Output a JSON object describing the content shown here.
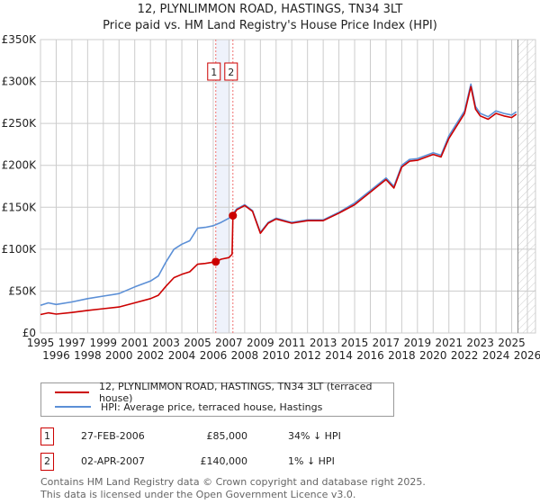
{
  "title_line1": "12, PLYNLIMMON ROAD, HASTINGS, TN34 3LT",
  "title_line2": "Price paid vs. HM Land Registry's House Price Index (HPI)",
  "chart_data": {
    "type": "line",
    "title": "12, PLYNLIMMON ROAD, HASTINGS, TN34 3LT — Price paid vs. HM Land Registry's House Price Index (HPI)",
    "xlim": [
      1995,
      2026
    ],
    "ylim": [
      0,
      350000
    ],
    "x_ticks": [
      "1995",
      "1996",
      "1997",
      "1998",
      "1999",
      "2000",
      "2001",
      "2002",
      "2003",
      "2004",
      "2005",
      "2006",
      "2007",
      "2008",
      "2009",
      "2010",
      "2011",
      "2012",
      "2013",
      "2014",
      "2015",
      "2016",
      "2017",
      "2018",
      "2019",
      "2020",
      "2021",
      "2022",
      "2023",
      "2024",
      "2025",
      "2026"
    ],
    "y_ticks": [
      {
        "v": 0,
        "label": "£0"
      },
      {
        "v": 50000,
        "label": "£50K"
      },
      {
        "v": 100000,
        "label": "£100K"
      },
      {
        "v": 150000,
        "label": "£150K"
      },
      {
        "v": 200000,
        "label": "£200K"
      },
      {
        "v": 250000,
        "label": "£250K"
      },
      {
        "v": 300000,
        "label": "£300K"
      },
      {
        "v": 350000,
        "label": "£350K"
      }
    ],
    "grid": true,
    "series": [
      {
        "name": "12, PLYNLIMMON ROAD, HASTINGS, TN34 3LT (terraced house)",
        "color": "#cc0000",
        "x": [
          1995,
          1995.5,
          1996,
          1997,
          1998,
          1999,
          2000,
          2001,
          2002,
          2002.5,
          2003,
          2003.5,
          2004,
          2004.5,
          2005,
          2005.5,
          2006.16,
          2006.5,
          2007,
          2007.2,
          2007.25,
          2007.5,
          2008,
          2008.5,
          2009,
          2009.5,
          2010,
          2011,
          2012,
          2013,
          2014,
          2015,
          2016,
          2017,
          2017.5,
          2018,
          2018.5,
          2019,
          2020,
          2020.5,
          2021,
          2022,
          2022.4,
          2022.7,
          2023,
          2023.5,
          2024,
          2024.5,
          2025,
          2025.3
        ],
        "y": [
          22000,
          24000,
          22500,
          24500,
          27000,
          29000,
          31000,
          36000,
          41000,
          45000,
          56000,
          66000,
          70000,
          73000,
          82000,
          83000,
          85000,
          88000,
          90000,
          94000,
          140000,
          147000,
          152000,
          145000,
          119000,
          131000,
          136000,
          131000,
          134000,
          134000,
          143000,
          153000,
          168000,
          183000,
          173000,
          198000,
          205000,
          206000,
          213000,
          210000,
          232000,
          262000,
          294000,
          267000,
          259000,
          255000,
          262000,
          259000,
          257000,
          261000
        ]
      },
      {
        "name": "HPI: Average price, terraced house, Hastings",
        "color": "#5b8fd6",
        "x": [
          1995,
          1995.5,
          1996,
          1997,
          1998,
          1999,
          2000,
          2001,
          2002,
          2002.5,
          2003,
          2003.5,
          2004,
          2004.5,
          2005,
          2005.5,
          2006,
          2006.5,
          2007,
          2007.5,
          2008,
          2008.5,
          2009,
          2009.5,
          2010,
          2011,
          2012,
          2013,
          2014,
          2015,
          2016,
          2017,
          2017.5,
          2018,
          2018.5,
          2019,
          2020,
          2020.5,
          2021,
          2022,
          2022.4,
          2022.7,
          2023,
          2023.5,
          2024,
          2024.5,
          2025,
          2025.3
        ],
        "y": [
          33000,
          36000,
          34000,
          37000,
          41000,
          44000,
          47000,
          55000,
          62000,
          68000,
          85000,
          100000,
          106000,
          110000,
          125000,
          126000,
          128000,
          132000,
          137000,
          148000,
          153000,
          146000,
          120000,
          132000,
          137000,
          132000,
          135000,
          135000,
          144000,
          155000,
          170000,
          185000,
          175000,
          200000,
          207000,
          208000,
          215000,
          212000,
          235000,
          265000,
          297000,
          270000,
          262000,
          258000,
          265000,
          262000,
          260000,
          264000
        ]
      }
    ],
    "sales": [
      {
        "label": "1",
        "x": 2006.16,
        "y": 85000
      },
      {
        "label": "2",
        "x": 2007.25,
        "y": 140000
      }
    ],
    "forecast_hatch_from": 2025.4,
    "legend_placement": "below"
  },
  "legend": [
    {
      "label": "12, PLYNLIMMON ROAD, HASTINGS, TN34 3LT (terraced house)",
      "color": "#cc0000"
    },
    {
      "label": "HPI: Average price, terraced house, Hastings",
      "color": "#5b8fd6"
    }
  ],
  "transactions": [
    {
      "num": "1",
      "date": "27-FEB-2006",
      "price": "£85,000",
      "hpi": "34% ↓ HPI"
    },
    {
      "num": "2",
      "date": "02-APR-2007",
      "price": "£140,000",
      "hpi": "1% ↓ HPI"
    }
  ],
  "footer_line1": "Contains HM Land Registry data © Crown copyright and database right 2025.",
  "footer_line2": "This data is licensed under the Open Government Licence v3.0."
}
